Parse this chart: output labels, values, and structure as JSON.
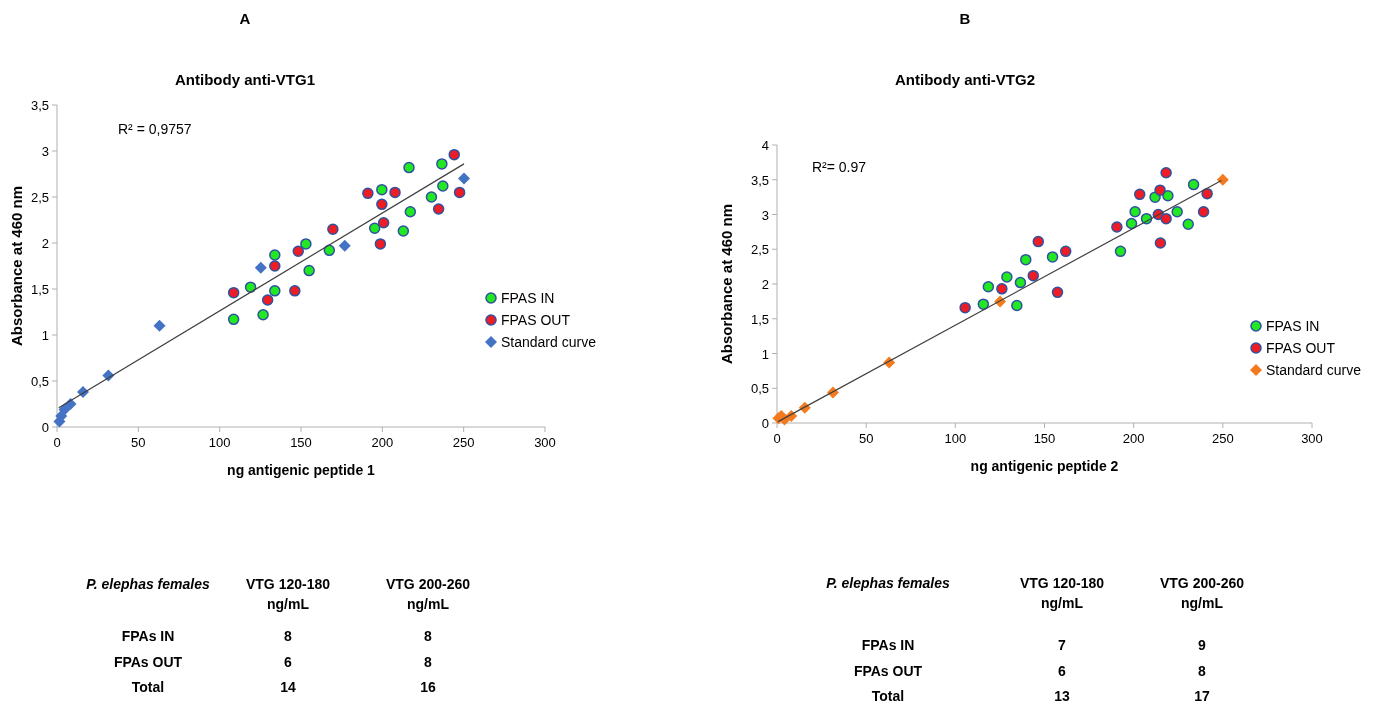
{
  "chart_data": [
    {
      "type": "scatter",
      "title": "A",
      "subtitle": "Antibody anti-VTG1",
      "xlabel": "ng antigenic peptide 1",
      "ylabel": "Absorbance at 460 nm",
      "annotations": [
        "R² = 0,9757"
      ],
      "xlim": [
        0,
        300
      ],
      "xticks": [
        0,
        50,
        100,
        150,
        200,
        250,
        300
      ],
      "ylim": [
        0,
        3.5
      ],
      "yticks": [
        0,
        {
          "value": 0.5,
          "label": "0,5"
        },
        1,
        {
          "value": 1.5,
          "label": "1,5"
        },
        2,
        {
          "value": 2.5,
          "label": "2,5"
        },
        3,
        {
          "value": 3.5,
          "label": "3,5"
        }
      ],
      "grid": false,
      "legend": "right",
      "series": [
        {
          "name": "FPAS IN",
          "color": "#22e822",
          "marker": "circle",
          "x": [
            108.6,
            119,
            126.7,
            133.9,
            133.9,
            153,
            155,
            167.4,
            195.3,
            199.7,
            216.4,
            217.2,
            212.9,
            230.2,
            236.6,
            237.2
          ],
          "values": [
            1.17,
            1.52,
            1.22,
            1.87,
            1.48,
            1.99,
            1.7,
            1.92,
            2.16,
            2.58,
            2.82,
            2.34,
            2.13,
            2.5,
            2.86,
            2.62
          ]
        },
        {
          "name": "FPAS OUT",
          "color": "#ee1c24",
          "marker": "circle",
          "x": [
            108.6,
            129.5,
            133.9,
            146.2,
            148.3,
            169.6,
            191.1,
            199.7,
            200.8,
            198.8,
            207.8,
            234.6,
            244.2,
            247.5
          ],
          "values": [
            1.46,
            1.38,
            1.75,
            1.48,
            1.91,
            2.15,
            2.54,
            2.42,
            2.22,
            1.99,
            2.55,
            2.37,
            2.96,
            2.55
          ]
        },
        {
          "name": "Standard curve",
          "color": "#4472c4",
          "marker": "diamond",
          "x": [
            1.5,
            2.6,
            4.6,
            8.3,
            16,
            31.6,
            63,
            125.3,
            176.9,
            250.2
          ],
          "values": [
            0.06,
            0.12,
            0.19,
            0.25,
            0.38,
            0.56,
            1.1,
            1.73,
            1.97,
            2.7
          ]
        },
        {
          "type": "line",
          "color": "#404040",
          "marker": "none",
          "x": [
            1.1,
            250.2
          ],
          "values": [
            0.21,
            2.86
          ]
        }
      ]
    },
    {
      "type": "scatter",
      "title": "B",
      "subtitle": "Antibody anti-VTG2",
      "xlabel": "ng antigenic peptide 2",
      "ylabel": "Absorbance at 460 nm",
      "annotations": [
        "R²= 0.97"
      ],
      "xlim": [
        0,
        300
      ],
      "xticks": [
        0,
        50,
        100,
        150,
        200,
        250,
        300
      ],
      "ylim": [
        0,
        4
      ],
      "yticks": [
        0,
        {
          "value": 0.5,
          "label": "0,5"
        },
        1,
        {
          "value": 1.5,
          "label": "1,5"
        },
        2,
        {
          "value": 2.5,
          "label": "2,5"
        },
        3,
        {
          "value": 3.5,
          "label": "3,5"
        },
        4
      ],
      "grid": false,
      "legend": "right",
      "series": [
        {
          "name": "FPAS IN",
          "color": "#22e822",
          "marker": "circle",
          "x": [
            115.7,
            118.5,
            128.9,
            134.5,
            136.5,
            139.5,
            154.5,
            192.6,
            198.8,
            200.8,
            207.2,
            212,
            219.2,
            224.4,
            230.6,
            233.6
          ],
          "values": [
            1.71,
            1.96,
            2.1,
            1.69,
            2.02,
            2.35,
            2.39,
            2.47,
            2.87,
            3.04,
            2.94,
            3.25,
            3.27,
            3.04,
            2.86,
            3.43
          ]
        },
        {
          "name": "FPAS OUT",
          "color": "#ee1c24",
          "marker": "circle",
          "x": [
            105.5,
            126.1,
            143.7,
            146.5,
            157.3,
            161.9,
            190.6,
            203.4,
            213.8,
            214.8,
            215,
            218.2,
            218.2,
            239.2,
            241.2
          ],
          "values": [
            1.66,
            1.93,
            2.12,
            2.61,
            1.88,
            2.47,
            2.82,
            3.29,
            3,
            3.35,
            2.59,
            3.6,
            2.94,
            3.04,
            3.3
          ]
        },
        {
          "name": "Standard curve",
          "color": "#f47a20",
          "marker": "diamond",
          "x": [
            0.8,
            2.4,
            4.2,
            8,
            15.6,
            31.4,
            62.9,
            125.1,
            250
          ],
          "values": [
            0.07,
            0.1,
            0.05,
            0.1,
            0.22,
            0.44,
            0.87,
            1.75,
            3.5
          ]
        },
        {
          "type": "line",
          "color": "#404040",
          "marker": "none",
          "x": [
            0.6,
            249.2
          ],
          "values": [
            0.02,
            3.49
          ]
        }
      ]
    },
    {
      "type": "other",
      "ylabel": "P. elephas females",
      "categories": [
        "FPAs IN",
        "FPAs OUT",
        "Total"
      ],
      "data_labels": true,
      "series": [
        {
          "name": "VTG 120-180 ng/mL",
          "values": [
            8,
            6,
            14
          ]
        },
        {
          "name": "VTG 200-260 ng/mL",
          "values": [
            8,
            8,
            16
          ]
        }
      ]
    },
    {
      "type": "other",
      "ylabel": "P. elephas females",
      "categories": [
        "FPAs IN",
        "FPAs OUT",
        "Total"
      ],
      "data_labels": true,
      "series": [
        {
          "name": "VTG 120-180 ng/mL",
          "values": [
            7,
            6,
            13
          ]
        },
        {
          "name": "VTG 200-260 ng/mL",
          "values": [
            9,
            8,
            17
          ]
        }
      ]
    }
  ]
}
